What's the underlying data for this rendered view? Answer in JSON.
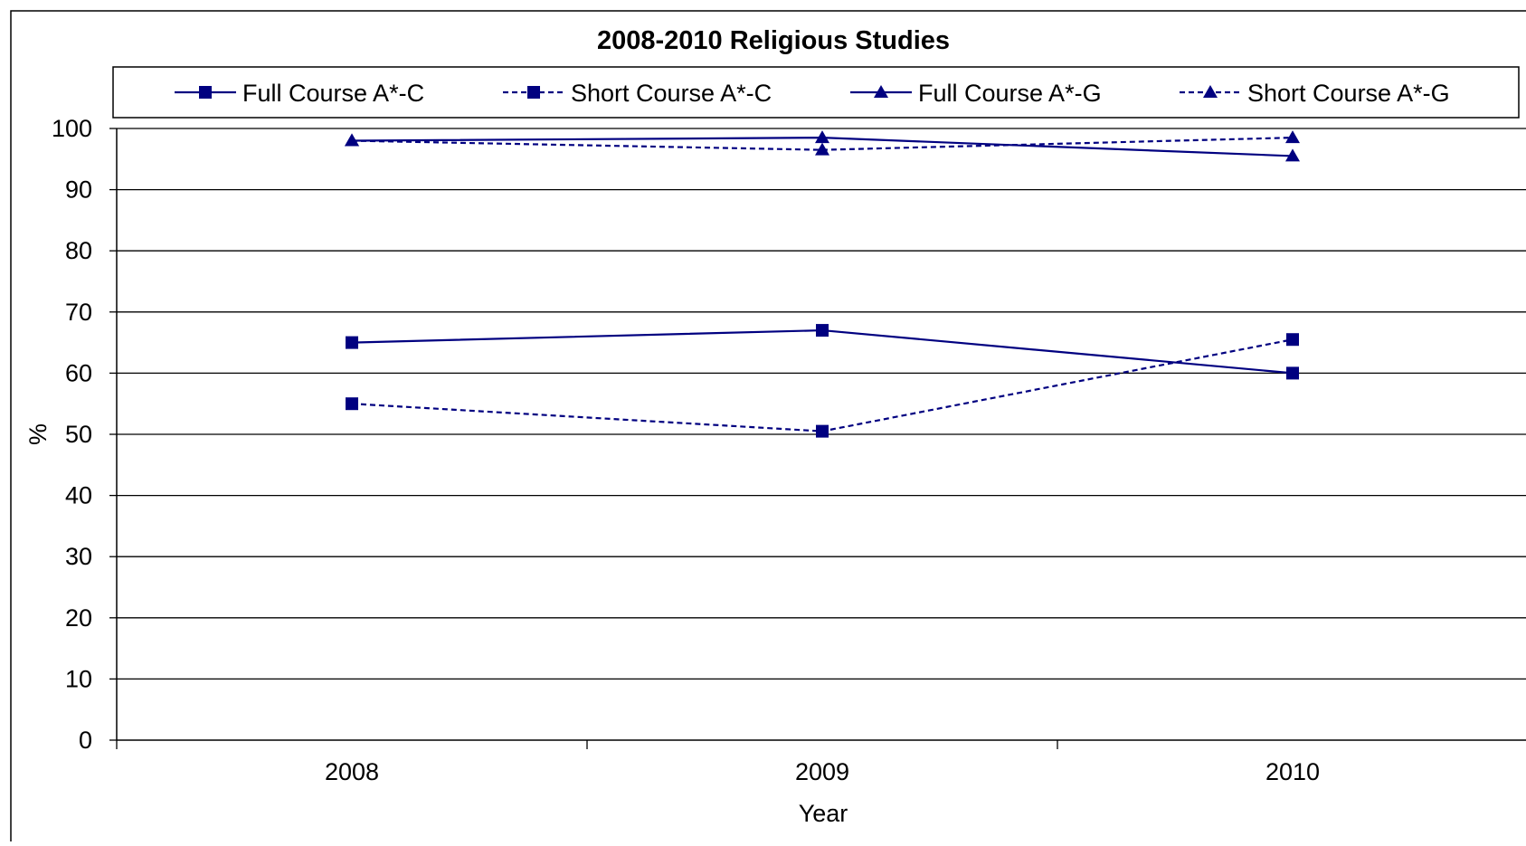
{
  "chart_data": {
    "type": "line",
    "title": "2008-2010 Religious Studies",
    "xlabel": "Year",
    "ylabel": "%",
    "categories": [
      "2008",
      "2009",
      "2010"
    ],
    "ylim": [
      0,
      100
    ],
    "yticks": [
      0,
      10,
      20,
      30,
      40,
      50,
      60,
      70,
      80,
      90,
      100
    ],
    "grid": true,
    "legend_position": "top",
    "series": [
      {
        "name": "Full Course A*-C",
        "values": [
          65,
          67,
          60
        ],
        "marker": "square",
        "dash": "solid",
        "color": "#000080"
      },
      {
        "name": "Short Course A*-C",
        "values": [
          55,
          50.5,
          65.5
        ],
        "marker": "square",
        "dash": "dashed",
        "color": "#000080"
      },
      {
        "name": "Full Course A*-G",
        "values": [
          98,
          98.5,
          95.5
        ],
        "marker": "triangle",
        "dash": "solid",
        "color": "#000080"
      },
      {
        "name": "Short Course A*-G",
        "values": [
          98,
          96.5,
          98.5
        ],
        "marker": "triangle",
        "dash": "dashed",
        "color": "#000080"
      }
    ]
  }
}
